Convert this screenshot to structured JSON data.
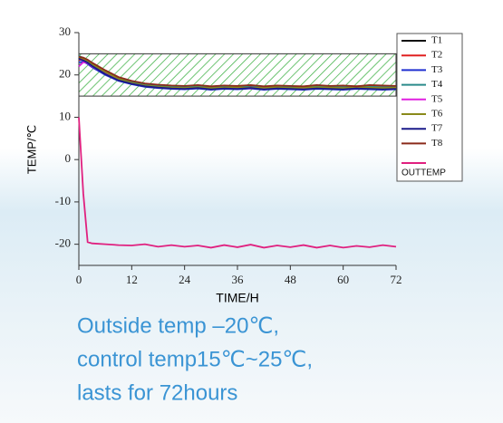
{
  "chart_data": {
    "type": "line",
    "x_label": "TIME/H",
    "y_label": "TEMP/℃",
    "x": [
      0,
      1,
      2,
      3,
      6,
      9,
      12,
      15,
      18,
      21,
      24,
      27,
      30,
      33,
      36,
      39,
      42,
      45,
      48,
      51,
      54,
      57,
      60,
      63,
      66,
      69,
      72
    ],
    "xlim": [
      0,
      72
    ],
    "xticks": [
      0,
      12,
      24,
      36,
      48,
      60,
      72
    ],
    "ylim": [
      -25,
      30
    ],
    "yticks": [
      -20,
      -10,
      0,
      10,
      20,
      30
    ],
    "band": {
      "range": [
        15,
        25
      ],
      "color": "#3cb043"
    },
    "series": [
      {
        "name": "T1",
        "color": "#111111",
        "values": [
          24,
          23.6,
          23.2,
          22.4,
          20.5,
          19,
          18.2,
          17.6,
          17.3,
          17.1,
          17,
          17.2,
          17,
          16.9,
          17.1,
          17.2,
          17,
          17.1,
          16.9,
          17,
          17.2,
          17,
          17.1,
          17,
          17.2,
          17.1,
          17
        ]
      },
      {
        "name": "T2",
        "color": "#e02020",
        "values": [
          23.5,
          23.8,
          23.4,
          22.8,
          21,
          19.4,
          18.5,
          17.9,
          17.6,
          17.4,
          17.3,
          17.5,
          17.2,
          17.3,
          17.4,
          17.5,
          17.2,
          17.4,
          17.3,
          17.2,
          17.5,
          17.3,
          17.4,
          17.3,
          17.5,
          17.4,
          17.3
        ]
      },
      {
        "name": "T3",
        "color": "#2030d0",
        "values": [
          23,
          23.1,
          22.6,
          21.8,
          20,
          18.6,
          17.8,
          17.2,
          16.9,
          16.7,
          16.6,
          16.8,
          16.5,
          16.7,
          16.6,
          16.8,
          16.5,
          16.7,
          16.6,
          16.5,
          16.7,
          16.6,
          16.5,
          16.7,
          16.6,
          16.5,
          16.6
        ]
      },
      {
        "name": "T4",
        "color": "#2a8a8a",
        "values": [
          24.5,
          24,
          23.5,
          22.6,
          20.8,
          19.2,
          18.3,
          17.7,
          17.4,
          17.2,
          17.1,
          17.3,
          17.1,
          17.2,
          17.3,
          17.1,
          17.2,
          17.3,
          17.1,
          17.2,
          17.3,
          17.2,
          17.1,
          17.3,
          17.2,
          17.1,
          17.2
        ]
      },
      {
        "name": "T5",
        "color": "#e020e0",
        "values": [
          22,
          23,
          22.8,
          22,
          20.3,
          18.9,
          18,
          17.4,
          17.1,
          16.9,
          16.8,
          17,
          16.8,
          16.9,
          17,
          16.8,
          16.9,
          17,
          16.8,
          16.9,
          17,
          16.9,
          16.8,
          17,
          16.9,
          16.8,
          16.9
        ]
      },
      {
        "name": "T6",
        "color": "#8a8a1a",
        "values": [
          24.2,
          23.9,
          23.3,
          22.5,
          20.7,
          19.1,
          18.1,
          17.5,
          17.2,
          17,
          16.9,
          17.1,
          16.9,
          17,
          17.1,
          16.9,
          17,
          17.1,
          16.9,
          17,
          17.1,
          17,
          16.9,
          17.1,
          17,
          16.9,
          17
        ]
      },
      {
        "name": "T7",
        "color": "#1a1a8a",
        "values": [
          23.8,
          23.4,
          22.9,
          22.1,
          20.2,
          18.7,
          17.9,
          17.3,
          17,
          16.8,
          16.7,
          16.9,
          16.6,
          16.8,
          16.7,
          16.9,
          16.6,
          16.8,
          16.7,
          16.6,
          16.8,
          16.7,
          16.6,
          16.8,
          16.7,
          16.6,
          16.7
        ]
      },
      {
        "name": "T8",
        "color": "#8a2a1a",
        "values": [
          24.3,
          24.1,
          23.6,
          22.9,
          21.1,
          19.5,
          18.6,
          18,
          17.7,
          17.5,
          17.4,
          17.6,
          17.3,
          17.5,
          17.4,
          17.6,
          17.3,
          17.5,
          17.4,
          17.3,
          17.6,
          17.4,
          17.5,
          17.3,
          17.6,
          17.5,
          17.4
        ]
      },
      {
        "name": "OUTTEMP",
        "color": "#e0207f",
        "values": [
          10,
          -8,
          -19.5,
          -19.8,
          -20,
          -20.2,
          -20.3,
          -20,
          -20.6,
          -20.2,
          -20.6,
          -20.3,
          -20.8,
          -20.2,
          -20.7,
          -20.1,
          -20.8,
          -20.3,
          -20.7,
          -20.2,
          -20.8,
          -20.3,
          -20.8,
          -20.4,
          -20.7,
          -20.2,
          -20.6
        ]
      }
    ],
    "annotations": [
      "Outside temp –20℃,",
      "control temp15℃~25℃,",
      "lasts for 72hours"
    ]
  }
}
